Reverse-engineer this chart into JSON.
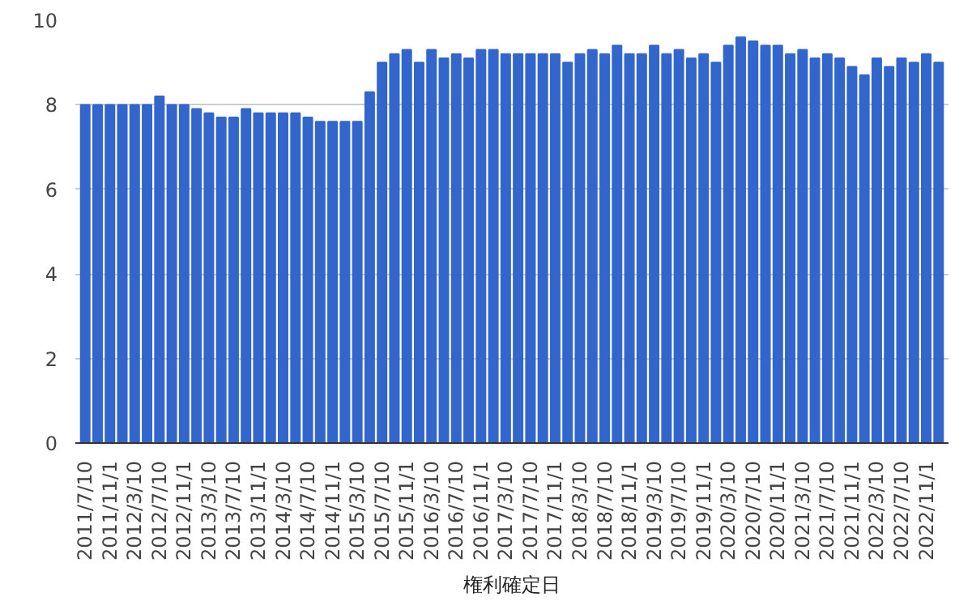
{
  "chart_data": {
    "type": "bar",
    "xlabel": "権利確定日",
    "categories": [
      "2011/7/10",
      null,
      "2011/11/1",
      null,
      "2012/3/10",
      null,
      "2012/7/10",
      null,
      "2012/11/1",
      null,
      "2013/3/10",
      null,
      "2013/7/10",
      null,
      "2013/11/1",
      null,
      "2014/3/10",
      null,
      "2014/7/10",
      null,
      "2014/11/1",
      null,
      "2015/3/10",
      null,
      "2015/7/10",
      null,
      "2015/11/1",
      null,
      "2016/3/10",
      null,
      "2016/7/10",
      null,
      "2016/11/1",
      null,
      "2017/3/10",
      null,
      "2017/7/10",
      null,
      "2017/11/1",
      null,
      "2018/3/10",
      null,
      "2018/7/10",
      null,
      "2018/11/1",
      null,
      "2019/3/10",
      null,
      "2019/7/10",
      null,
      "2019/11/1",
      null,
      "2020/3/10",
      null,
      "2020/7/10",
      null,
      "2020/11/1",
      null,
      "2021/3/10",
      null,
      "2021/7/10",
      null,
      "2021/11/1",
      null,
      "2022/3/10",
      null,
      "2022/7/10",
      null,
      "2022/11/1",
      null
    ],
    "values": [
      8.0,
      8.0,
      8.0,
      8.0,
      8.0,
      8.0,
      8.2,
      8.0,
      8.0,
      7.9,
      7.8,
      7.7,
      7.7,
      7.9,
      7.8,
      7.8,
      7.8,
      7.8,
      7.7,
      7.6,
      7.6,
      7.6,
      7.6,
      8.3,
      9.0,
      9.2,
      9.3,
      9.0,
      9.3,
      9.1,
      9.2,
      9.1,
      9.3,
      9.3,
      9.2,
      9.2,
      9.2,
      9.2,
      9.2,
      9.0,
      9.2,
      9.3,
      9.2,
      9.4,
      9.2,
      9.2,
      9.4,
      9.2,
      9.3,
      9.1,
      9.2,
      9.0,
      9.4,
      9.6,
      9.5,
      9.4,
      9.4,
      9.2,
      9.3,
      9.1,
      9.2,
      9.1,
      8.9,
      8.7,
      9.1,
      8.9,
      9.1,
      9.0,
      9.2,
      9.0
    ],
    "color": "#3366cc",
    "ylim": [
      0,
      10
    ],
    "yticks": [
      0,
      2,
      4,
      6,
      8,
      10
    ],
    "grid": "y"
  }
}
